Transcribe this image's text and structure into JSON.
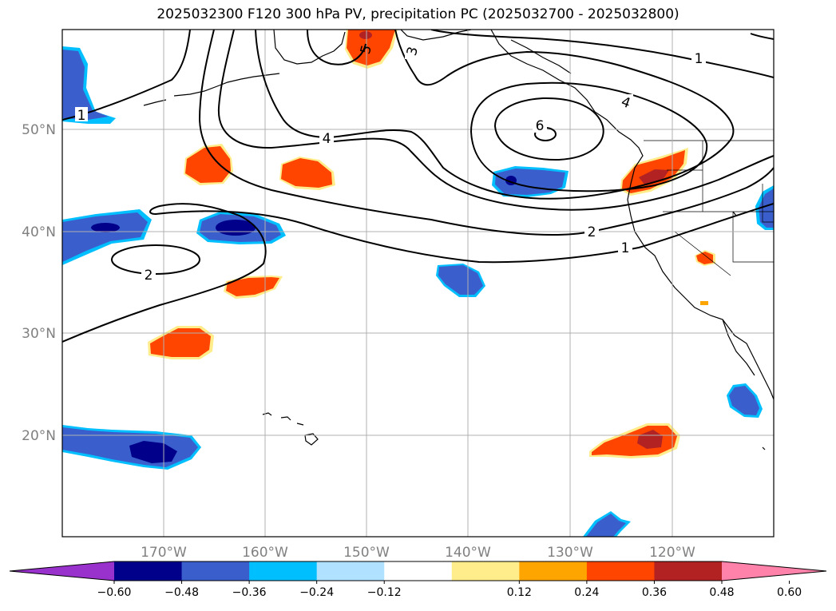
{
  "title": "2025032300 F120 300 hPa PV, precipitation PC (2025032700 - 2025032800)",
  "map": {
    "lon_labels": [
      "170°W",
      "160°W",
      "150°W",
      "140°W",
      "130°W",
      "120°W"
    ],
    "lat_labels": [
      "50°N",
      "40°N",
      "30°N",
      "20°N"
    ],
    "contour_labels": [
      "1",
      "2",
      "4",
      "6",
      "5",
      "3",
      "4",
      "2",
      "1",
      "1"
    ]
  },
  "colorbar": {
    "ticks": [
      "−0.60",
      "−0.48",
      "−0.36",
      "−0.24",
      "−0.12",
      "0.12",
      "0.24",
      "0.36",
      "0.48",
      "0.60"
    ],
    "colors": [
      "#9932cc",
      "#00008b",
      "#3a5fcd",
      "#00bfff",
      "#b0e2ff",
      "#ffffff",
      "#ffec8b",
      "#ffa500",
      "#ff4500",
      "#b22222",
      "#ff82ab"
    ]
  },
  "colors": {
    "neg_strong": "#00008b",
    "neg_mid": "#3a5fcd",
    "neg_light": "#00bfff",
    "pos_light": "#ffec8b",
    "pos_mid": "#ff4500",
    "pos_strong": "#b22222"
  }
}
